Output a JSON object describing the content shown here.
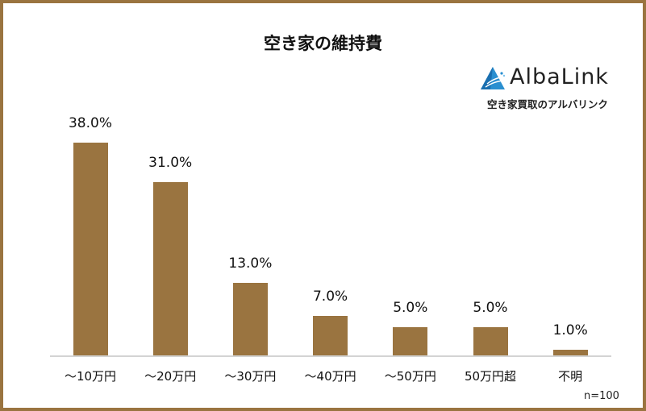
{
  "chart_data": {
    "type": "bar",
    "title": "空き家の維持費",
    "categories": [
      "～10万円",
      "～20万円",
      "～30万円",
      "～40万円",
      "～50万円",
      "50万円超",
      "不明"
    ],
    "values": [
      38.0,
      31.0,
      13.0,
      7.0,
      5.0,
      5.0,
      1.0
    ],
    "value_labels": [
      "38.0%",
      "31.0%",
      "13.0%",
      "7.0%",
      "5.0%",
      "5.0%",
      "1.0%"
    ],
    "xlabel": "",
    "ylabel": "",
    "ylim": [
      0,
      40
    ],
    "grid": false,
    "legend": null,
    "annotation": "n=100",
    "bar_color": "#9a7440"
  },
  "logo": {
    "name": "AlbaLink",
    "tagline": "空き家買取のアルバリンク",
    "accent": "#1f8ccf"
  },
  "frame_color": "#9a7440"
}
